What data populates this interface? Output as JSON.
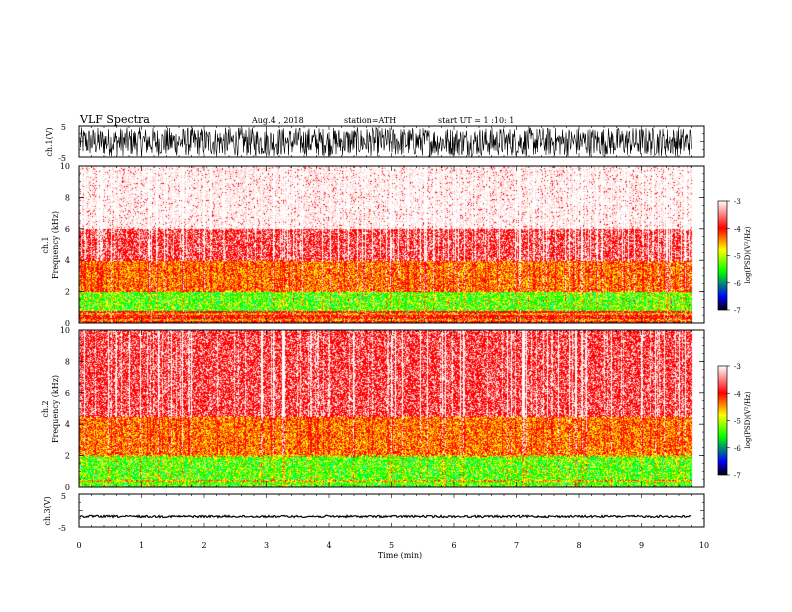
{
  "header": {
    "title": "VLF Spectra",
    "date": "Aug.4 , 2018",
    "station": "station=ATH",
    "start_ut": "start UT = 1 :10: 1"
  },
  "chart_data": [
    {
      "type": "line",
      "panel": "ch1-waveform",
      "ylabel": "ch.1(V)",
      "ylim": [
        -5,
        5
      ],
      "yticks": [
        "5",
        "-5"
      ],
      "xlim": [
        0,
        10
      ],
      "signal": "dense broadband noise",
      "amplitude_range_v": [
        -4.8,
        4.6
      ],
      "data_end_min": 9.8
    },
    {
      "type": "heatmap",
      "panel": "ch1-spectrogram",
      "ylabel": "ch.1 Frequency (kHz)",
      "ylim": [
        0,
        10
      ],
      "yticks": [
        "0",
        "2",
        "4",
        "6",
        "8",
        "10"
      ],
      "xlim": [
        0,
        10
      ],
      "data_end_min": 9.8,
      "band_levels_log_psd": [
        {
          "freq_khz": [
            0,
            0.8
          ],
          "level": -4.0
        },
        {
          "freq_khz": [
            0.8,
            2.0
          ],
          "level": -5.0
        },
        {
          "freq_khz": [
            2.0,
            4.0
          ],
          "level": -4.4
        },
        {
          "freq_khz": [
            4.0,
            6.0
          ],
          "level": -3.7
        },
        {
          "freq_khz": [
            6.0,
            10.0
          ],
          "level": -3.2
        }
      ],
      "colorbar": {
        "label": "log(PSD)(V²/Hz)",
        "range": [
          -7,
          -3
        ],
        "ticks": [
          "-3",
          "-4",
          "-5",
          "-6",
          "-7"
        ],
        "colors": [
          "#ffffff",
          "#ff0000",
          "#ffff00",
          "#00ff00",
          "#0000ff",
          "#000000"
        ]
      }
    },
    {
      "type": "heatmap",
      "panel": "ch2-spectrogram",
      "ylabel": "ch.2 Frequency (kHz)",
      "ylim": [
        0,
        10
      ],
      "yticks": [
        "0",
        "2",
        "4",
        "6",
        "8",
        "10"
      ],
      "xlim": [
        0,
        10
      ],
      "data_end_min": 9.8,
      "band_levels_log_psd": [
        {
          "freq_khz": [
            0,
            2.0
          ],
          "level": -5.0
        },
        {
          "freq_khz": [
            2.0,
            4.5
          ],
          "level": -4.4
        },
        {
          "freq_khz": [
            4.5,
            10
          ],
          "level": -3.7
        }
      ],
      "colorbar": {
        "label": "log(PSD)(V²/Hz)",
        "range": [
          -7,
          -3
        ],
        "ticks": [
          "-3",
          "-4",
          "-5",
          "-6",
          "-7"
        ],
        "colors": [
          "#ffffff",
          "#ff0000",
          "#ffff00",
          "#00ff00",
          "#0000ff",
          "#000000"
        ]
      }
    },
    {
      "type": "line",
      "panel": "ch3-waveform",
      "ylabel": "ch.3(V)",
      "ylim": [
        -5,
        5
      ],
      "yticks": [
        "5",
        "-5"
      ],
      "xlim": [
        0,
        10
      ],
      "signal": "near-constant trace",
      "level_v": -1.8,
      "data_end_min": 9.8
    }
  ],
  "x_axis": {
    "label": "Time (min)",
    "ticks": [
      "0",
      "1",
      "2",
      "3",
      "4",
      "5",
      "6",
      "7",
      "8",
      "9",
      "10"
    ]
  }
}
